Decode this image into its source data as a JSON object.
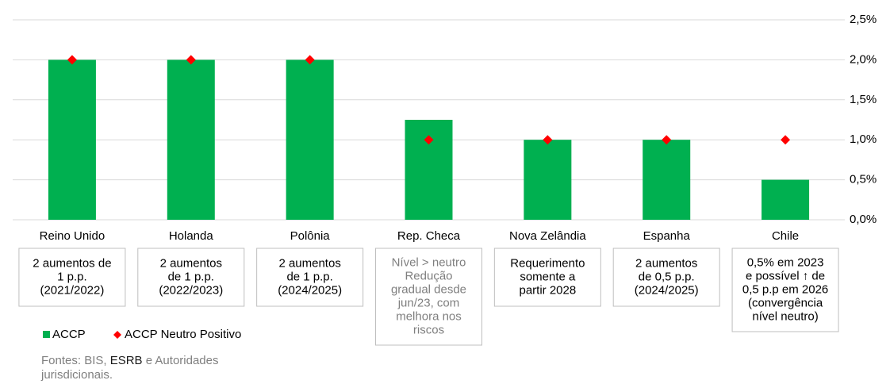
{
  "chart_data": {
    "type": "bar",
    "categories": [
      "Reino Unido",
      "Holanda",
      "Polônia",
      "Rep. Checa",
      "Nova Zelândia",
      "Espanha",
      "Chile"
    ],
    "series": [
      {
        "name": "ACCP",
        "color": "#00b050",
        "values": [
          2,
          2,
          2,
          1.25,
          1,
          1,
          0.5
        ]
      },
      {
        "name": "ACCP Neutro Positivo",
        "color": "#ff0000",
        "values": [
          2,
          2,
          2,
          1,
          1,
          1,
          1
        ]
      }
    ],
    "ylim": [
      0,
      2.5
    ],
    "yticks": [
      {
        "value": 0,
        "label": "0,0%"
      },
      {
        "value": 0.5,
        "label": "0,5%"
      },
      {
        "value": 1,
        "label": "1,0%"
      },
      {
        "value": 1.5,
        "label": "1,5%"
      },
      {
        "value": 2,
        "label": "2,0%"
      },
      {
        "value": 2.5,
        "label": "2,5%"
      }
    ],
    "grid": true,
    "notes": [
      [
        "2 aumentos de",
        "1 p.p.",
        "(2021/2022)"
      ],
      [
        "2 aumentos",
        "de 1 p.p.",
        "(2022/2023)"
      ],
      [
        "2 aumentos",
        "de 1 p.p.",
        "(2024/2025)"
      ],
      [
        "Nível > neutro",
        "Redução",
        "gradual desde",
        "jun/23, com",
        "melhora nos",
        "riscos"
      ],
      [
        "Requerimento",
        "somente a",
        "partir 2028"
      ],
      [
        "2 aumentos",
        "de 0,5 p.p.",
        "(2024/2025)"
      ],
      [
        "0,5% em 2023",
        "e possível ↑ de",
        "0,5 p.p em 2026",
        "(convergência",
        "nível neutro)"
      ]
    ],
    "note_colors": [
      "#000000",
      "#000000",
      "#000000",
      "#7f7f7f",
      "#000000",
      "#000000",
      "#000000"
    ],
    "source": [
      "Fontes: BIS, ",
      "ESRB",
      " e Autoridades jurisdicionais."
    ]
  }
}
